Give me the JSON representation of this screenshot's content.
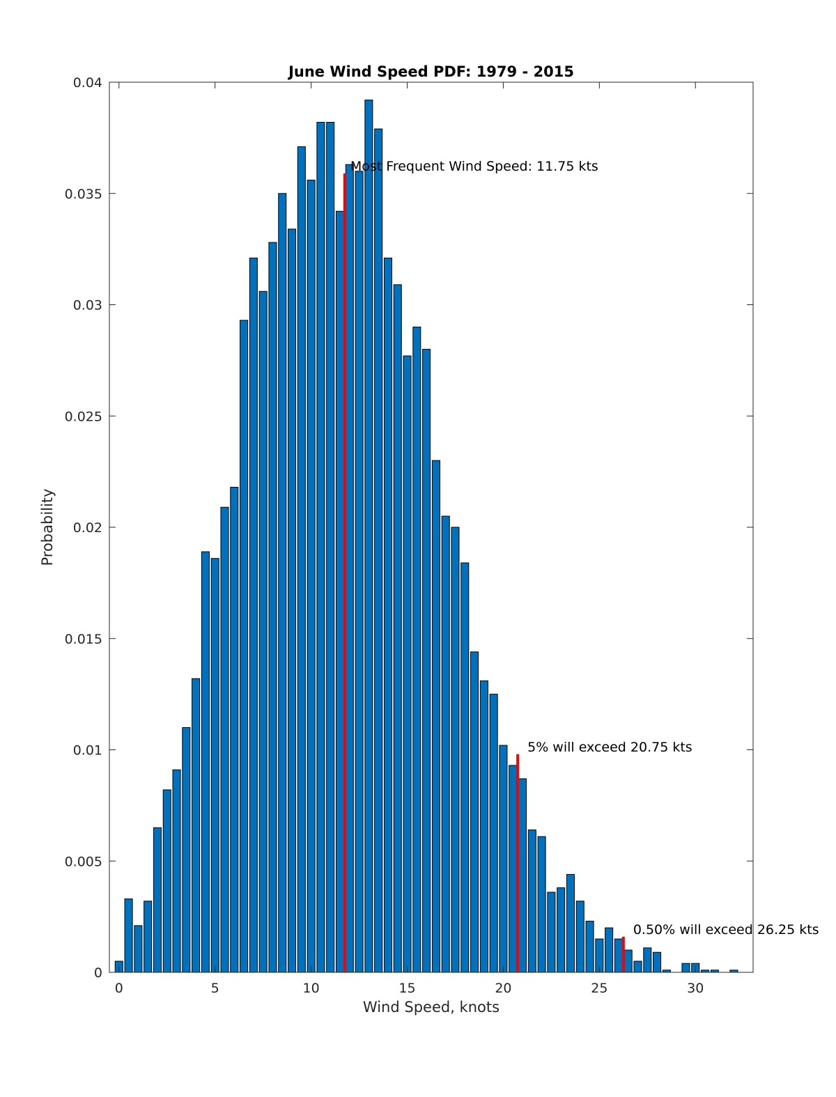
{
  "chart_data": {
    "type": "bar",
    "title": "June Wind Speed PDF: 1979 - 2015",
    "xlabel": "Wind Speed, knots",
    "ylabel": "Probability",
    "xlim": [
      -0.5,
      33
    ],
    "ylim": [
      0,
      0.04
    ],
    "xticks": [
      0,
      5,
      10,
      15,
      20,
      25,
      30
    ],
    "yticks": [
      0,
      0.005,
      0.01,
      0.015,
      0.02,
      0.025,
      0.03,
      0.035,
      0.04
    ],
    "xtick_labels": [
      "0",
      "5",
      "10",
      "15",
      "20",
      "25",
      "30"
    ],
    "ytick_labels": [
      "0",
      "0.005",
      "0.01",
      "0.015",
      "0.02",
      "0.025",
      "0.03",
      "0.035",
      "0.04"
    ],
    "bar_color": "#0072BD",
    "bar_width": 0.4,
    "series": [
      {
        "name": "Probability",
        "x": [
          0,
          0.5,
          1,
          1.5,
          2,
          2.5,
          3,
          3.5,
          4,
          4.5,
          5,
          5.5,
          6,
          6.5,
          7,
          7.5,
          8,
          8.5,
          9,
          9.5,
          10,
          10.5,
          11,
          11.5,
          12,
          12.5,
          13,
          13.5,
          14,
          14.5,
          15,
          15.5,
          16,
          16.5,
          17,
          17.5,
          18,
          18.5,
          19,
          19.5,
          20,
          20.5,
          21,
          21.5,
          22,
          22.5,
          23,
          23.5,
          24,
          24.5,
          25,
          25.5,
          26,
          26.5,
          27,
          27.5,
          28,
          28.5,
          29,
          29.5,
          30,
          30.5,
          31,
          31.5,
          32,
          32.5
        ],
        "values": [
          0.0005,
          0.0033,
          0.0021,
          0.0032,
          0.0065,
          0.0082,
          0.0091,
          0.011,
          0.0132,
          0.0189,
          0.0186,
          0.0209,
          0.0218,
          0.0293,
          0.0321,
          0.0306,
          0.0328,
          0.035,
          0.0334,
          0.0371,
          0.0356,
          0.0382,
          0.0382,
          0.0342,
          0.0363,
          0.036,
          0.0392,
          0.0379,
          0.0321,
          0.0309,
          0.0277,
          0.029,
          0.028,
          0.023,
          0.0205,
          0.02,
          0.0184,
          0.0144,
          0.0131,
          0.0125,
          0.0102,
          0.0093,
          0.0087,
          0.0064,
          0.0061,
          0.0036,
          0.0038,
          0.0044,
          0.0032,
          0.0023,
          0.0015,
          0.002,
          0.0015,
          0.001,
          0.0005,
          0.0011,
          0.0009,
          0.0001,
          0.0,
          0.0004,
          0.0004,
          0.0001,
          0.0001,
          0.0,
          0.0001,
          0.0
        ]
      }
    ],
    "markers": [
      {
        "x": 11.75,
        "y": 0.0359,
        "color": "#FF0000",
        "label": "Most Frequent Wind Speed: 11.75 kts"
      },
      {
        "x": 20.75,
        "y": 0.0098,
        "color": "#FF0000",
        "label": "5% will exceed 20.75 kts"
      },
      {
        "x": 26.25,
        "y": 0.0016,
        "color": "#FF0000",
        "label": "0.50% will exceed 26.25 kts"
      }
    ]
  }
}
